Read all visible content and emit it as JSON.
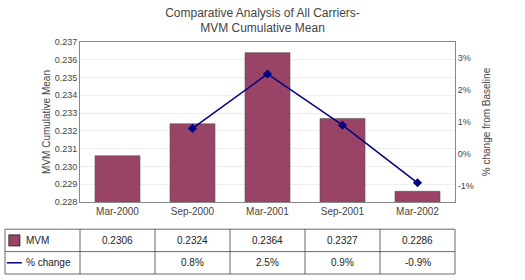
{
  "chart_data": {
    "type": "bar",
    "title": "Comparative Analysis of All Carriers-\nMVM Cumulative Mean",
    "categories": [
      "Mar-2000",
      "Sep-2000",
      "Mar-2001",
      "Sep-2001",
      "Mar-2002"
    ],
    "series": [
      {
        "name": "MVM",
        "type": "bar",
        "color": "#994466",
        "values": [
          0.2306,
          0.2324,
          0.2364,
          0.2327,
          0.2286
        ]
      },
      {
        "name": "% change",
        "type": "line",
        "axis": "y2",
        "color": "#000080",
        "marker": "diamond",
        "values": [
          null,
          0.8,
          2.5,
          0.9,
          -0.9
        ],
        "value_labels": [
          null,
          "0.8%",
          "2.5%",
          "0.9%",
          "-0.9%"
        ]
      }
    ],
    "ylim": [
      0.228,
      0.237
    ],
    "yticks": [
      0.228,
      0.229,
      {
        "value": 0.23,
        "label": "0.230"
      },
      0.231,
      0.232,
      0.233,
      0.234,
      0.235,
      0.236,
      0.237
    ],
    "y2lim": [
      -1.5,
      3.5
    ],
    "y2ticks": [
      {
        "value": -1,
        "label": "-1%"
      },
      {
        "value": 0,
        "label": "0%"
      },
      {
        "value": 1,
        "label": "1%"
      },
      {
        "value": 2,
        "label": "2%"
      },
      {
        "value": 3,
        "label": "3%"
      }
    ],
    "ylabel": "MVM Cumulative Mean",
    "y2label": "% change from Baseline",
    "grid": true,
    "data_labels": true
  }
}
